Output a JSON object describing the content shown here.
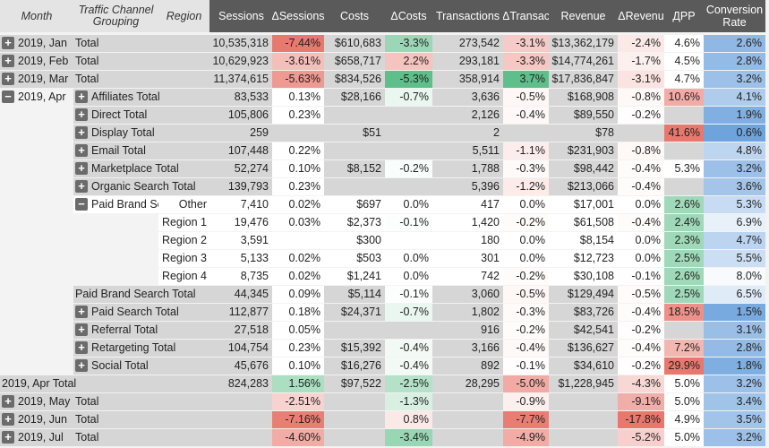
{
  "headers": {
    "month": "Month",
    "channel": "Traffic Channel Grouping",
    "region": "Region",
    "metrics": [
      "Sessions",
      "ΔSessions",
      "Costs",
      "ΔCosts",
      "Transactions",
      "ΔTransac",
      "Revenue",
      "ΔRevenu",
      "ДPP",
      "Conversion Rate"
    ]
  },
  "icons": {
    "expand": "plus-square-icon",
    "collapse": "minus-square-icon"
  },
  "colors": {
    "header_bg": "#5a5a5a",
    "gray_cell": "#d6d6d6",
    "negative": "#e8786e",
    "positive": "#5fbf8a",
    "rate_scale": "#6fa3dc"
  },
  "rows": [
    {
      "month": "2019, Jan",
      "mIcon": "+",
      "channel": "Total",
      "type": "mtotal",
      "vals": [
        "10,535,318",
        "-7.44%",
        "$610,683",
        "-3.3%",
        "273,542",
        "-3.1%",
        "$13,362,179",
        "-2.4%",
        "4.6%",
        "2.6%"
      ]
    },
    {
      "month": "2019, Feb",
      "mIcon": "+",
      "channel": "Total",
      "type": "mtotal",
      "vals": [
        "10,629,923",
        "-3.61%",
        "$658,717",
        "2.2%",
        "293,181",
        "-3.3%",
        "$14,774,261",
        "-1.7%",
        "4.5%",
        "2.8%"
      ]
    },
    {
      "month": "2019, Mar",
      "mIcon": "+",
      "channel": "Total",
      "type": "mtotal",
      "vals": [
        "11,374,615",
        "-5.63%",
        "$834,526",
        "-5.3%",
        "358,914",
        "3.7%",
        "$17,836,847",
        "-3.1%",
        "4.7%",
        "3.2%"
      ]
    },
    {
      "month": "2019, Apr",
      "mIcon": "−",
      "channel": "Affiliates Total",
      "cIcon": "+",
      "type": "ctotal",
      "vals": [
        "83,533",
        "0.13%",
        "$28,166",
        "-0.7%",
        "3,636",
        "-0.5%",
        "$168,908",
        "-0.8%",
        "10.6%",
        "4.1%"
      ]
    },
    {
      "channel": "Direct Total",
      "cIcon": "+",
      "type": "ctotal",
      "vals": [
        "105,806",
        "0.23%",
        "",
        "",
        "2,126",
        "-0.4%",
        "$89,550",
        "-0.2%",
        "",
        "1.9%"
      ]
    },
    {
      "channel": "Display Total",
      "cIcon": "+",
      "type": "ctotal",
      "vals": [
        "259",
        "",
        "$51",
        "",
        "2",
        "",
        "$78",
        "",
        "41.6%",
        "0.6%"
      ]
    },
    {
      "channel": "Email Total",
      "cIcon": "+",
      "type": "ctotal",
      "vals": [
        "107,448",
        "0.22%",
        "",
        "",
        "5,511",
        "-1.1%",
        "$231,903",
        "-0.8%",
        "",
        "4.8%"
      ]
    },
    {
      "channel": "Marketplace Total",
      "cIcon": "+",
      "type": "ctotal",
      "vals": [
        "52,274",
        "0.10%",
        "$8,152",
        "-0.2%",
        "1,788",
        "-0.3%",
        "$98,442",
        "-0.4%",
        "5.3%",
        "3.2%"
      ]
    },
    {
      "channel": "Organic Search Total",
      "cIcon": "+",
      "type": "ctotal",
      "vals": [
        "139,793",
        "0.23%",
        "",
        "",
        "5,396",
        "-1.2%",
        "$213,066",
        "-0.4%",
        "",
        "3.6%"
      ]
    },
    {
      "channel": "Paid Brand Search",
      "cIcon": "−",
      "region": "Other",
      "type": "region",
      "vals": [
        "7,410",
        "0.02%",
        "$697",
        "0.0%",
        "417",
        "0.0%",
        "$17,001",
        "0.0%",
        "2.6%",
        "5.3%"
      ]
    },
    {
      "region": "Region 1",
      "type": "region",
      "vals": [
        "19,476",
        "0.03%",
        "$2,373",
        "-0.1%",
        "1,420",
        "-0.2%",
        "$61,508",
        "-0.4%",
        "2.4%",
        "6.9%"
      ]
    },
    {
      "region": "Region 2",
      "type": "region",
      "vals": [
        "3,591",
        "",
        "$300",
        "",
        "180",
        "0.0%",
        "$8,154",
        "0.0%",
        "2.3%",
        "4.7%"
      ]
    },
    {
      "region": "Region 3",
      "type": "region",
      "vals": [
        "5,133",
        "0.02%",
        "$503",
        "0.0%",
        "301",
        "0.0%",
        "$12,723",
        "0.0%",
        "2.5%",
        "5.5%"
      ]
    },
    {
      "region": "Region 4",
      "type": "region",
      "vals": [
        "8,735",
        "0.02%",
        "$1,241",
        "0.0%",
        "742",
        "-0.2%",
        "$30,108",
        "-0.1%",
        "2.6%",
        "8.0%"
      ]
    },
    {
      "channel": "Paid Brand Search Total",
      "type": "subtotal",
      "vals": [
        "44,345",
        "0.09%",
        "$5,114",
        "-0.1%",
        "3,060",
        "-0.5%",
        "$129,494",
        "-0.5%",
        "2.5%",
        "6.5%"
      ]
    },
    {
      "channel": "Paid Search Total",
      "cIcon": "+",
      "type": "ctotal",
      "vals": [
        "112,877",
        "0.18%",
        "$24,371",
        "-0.7%",
        "1,802",
        "-0.3%",
        "$83,726",
        "-0.4%",
        "18.5%",
        "1.5%"
      ]
    },
    {
      "channel": "Referral Total",
      "cIcon": "+",
      "type": "ctotal",
      "vals": [
        "27,518",
        "0.05%",
        "",
        "",
        "916",
        "-0.2%",
        "$42,541",
        "-0.2%",
        "",
        "3.1%"
      ]
    },
    {
      "channel": "Retargeting Total",
      "cIcon": "+",
      "type": "ctotal",
      "vals": [
        "104,754",
        "0.23%",
        "$15,392",
        "-0.4%",
        "3,166",
        "-0.4%",
        "$136,627",
        "-0.4%",
        "7.2%",
        "2.8%"
      ]
    },
    {
      "channel": "Social Total",
      "cIcon": "+",
      "type": "ctotal",
      "vals": [
        "45,676",
        "0.10%",
        "$16,276",
        "-0.4%",
        "892",
        "-0.1%",
        "$34,610",
        "-0.2%",
        "29.9%",
        "1.8%"
      ]
    },
    {
      "month": "2019, Apr  Total",
      "type": "aprtotal",
      "vals": [
        "824,283",
        "1.56%",
        "$97,522",
        "-2.5%",
        "28,295",
        "-5.0%",
        "$1,228,945",
        "-4.3%",
        "5.0%",
        "3.2%"
      ]
    },
    {
      "month": "2019, May",
      "mIcon": "+",
      "channel": "Total",
      "type": "mtotal",
      "vals": [
        "",
        "-2.51%",
        "",
        "-1.3%",
        "",
        "-0.9%",
        "",
        "-9.1%",
        "5.0%",
        "3.4%"
      ]
    },
    {
      "month": "2019, Jun",
      "mIcon": "+",
      "channel": "Total",
      "type": "mtotal",
      "vals": [
        "",
        "-7.16%",
        "",
        "0.8%",
        "",
        "-7.7%",
        "",
        "-17.8%",
        "4.9%",
        "3.5%"
      ]
    },
    {
      "month": "2019, Jul",
      "mIcon": "+",
      "channel": "Total",
      "type": "mtotal",
      "vals": [
        "",
        "-4.60%",
        "",
        "-3.4%",
        "",
        "-4.9%",
        "",
        "-5.2%",
        "5.0%",
        "3.2%"
      ]
    }
  ]
}
